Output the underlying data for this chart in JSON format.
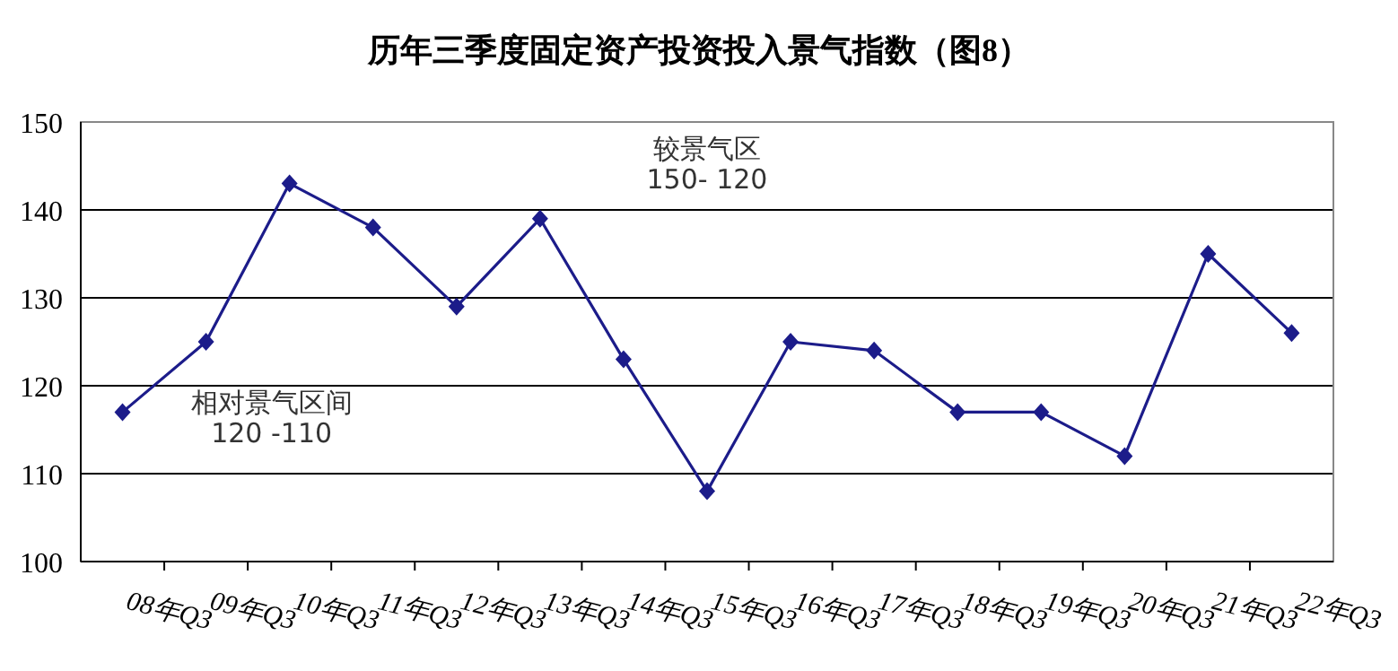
{
  "chart_data": {
    "type": "line",
    "title": "历年三季度固定资产投资投入景气指数（图8）",
    "categories": [
      "08年Q3",
      "09年Q3",
      "10年Q3",
      "11年Q3",
      "12年Q3",
      "13年Q3",
      "14年Q3",
      "15年Q3",
      "16年Q3",
      "17年Q3",
      "18年Q3",
      "19年Q3",
      "20年Q3",
      "21年Q3",
      "22年Q3"
    ],
    "series": [
      {
        "color": "#1c1c8a",
        "values": [
          117,
          125,
          143,
          138,
          129,
          139,
          123,
          108,
          125,
          124,
          117,
          117,
          112,
          135,
          126
        ]
      }
    ],
    "ylim": [
      100,
      150
    ],
    "yticks": [
      100,
      110,
      120,
      130,
      140,
      150
    ],
    "grid": "y",
    "marker": "diamond",
    "line_style": "solid",
    "annotations": [
      "较景气区\n150- 120",
      "相对景气区间\n120 -110"
    ]
  }
}
